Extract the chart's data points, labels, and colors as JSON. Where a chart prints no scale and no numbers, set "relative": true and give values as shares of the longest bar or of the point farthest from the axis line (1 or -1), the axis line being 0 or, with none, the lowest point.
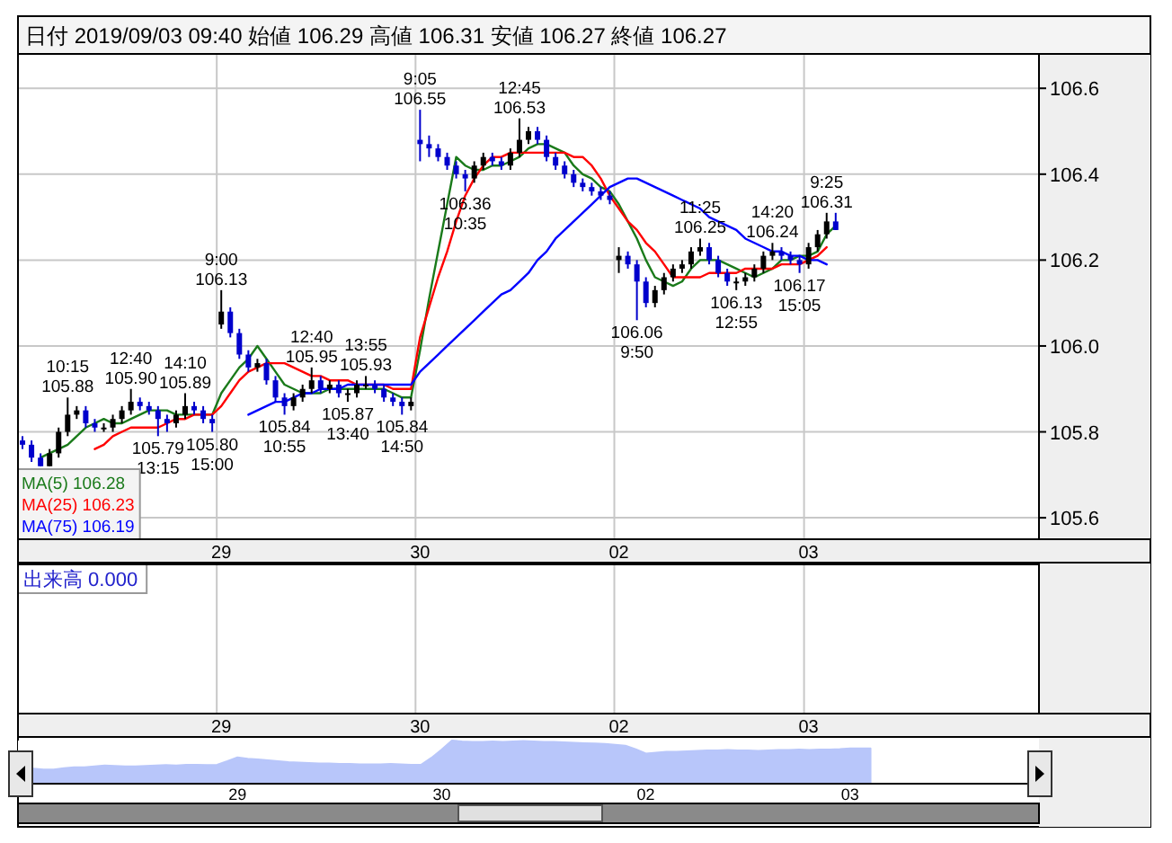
{
  "chart_data": [
    {
      "type": "candlestick",
      "title": "日付 2019/09/03 09:40   始値 106.29   高値 106.31   安値 106.27   終値 106.27",
      "categories": [
        null,
        null,
        null,
        null,
        null,
        null,
        null,
        null,
        null,
        null,
        null,
        null,
        null,
        null,
        null,
        null,
        null,
        null,
        null,
        null,
        null,
        null,
        "29",
        null,
        null,
        null,
        null,
        null,
        null,
        null,
        null,
        null,
        null,
        null,
        null,
        null,
        null,
        null,
        null,
        null,
        null,
        null,
        null,
        null,
        "30",
        null,
        null,
        null,
        null,
        null,
        null,
        null,
        null,
        null,
        null,
        null,
        null,
        null,
        null,
        null,
        null,
        null,
        null,
        null,
        null,
        null,
        "02",
        null,
        null,
        null,
        null,
        null,
        null,
        null,
        null,
        null,
        null,
        null,
        null,
        null,
        null,
        null,
        null,
        null,
        null,
        null,
        null,
        "03",
        null,
        null,
        null,
        null,
        null,
        null,
        null,
        null,
        null,
        null,
        null,
        null,
        null,
        null,
        null,
        null,
        null,
        null,
        null,
        null,
        null,
        null,
        null,
        null,
        null
      ],
      "ohlc": [
        [
          105.78,
          105.79,
          105.76,
          105.77
        ],
        [
          105.77,
          105.78,
          105.73,
          105.74
        ],
        [
          105.74,
          105.75,
          105.72,
          105.72
        ],
        [
          105.72,
          105.76,
          105.72,
          105.75
        ],
        [
          105.75,
          105.81,
          105.74,
          105.8
        ],
        [
          105.8,
          105.88,
          105.79,
          105.84
        ],
        [
          105.84,
          105.86,
          105.83,
          105.85
        ],
        [
          105.85,
          105.86,
          105.81,
          105.82
        ],
        [
          105.82,
          105.83,
          105.8,
          105.81
        ],
        [
          105.81,
          105.82,
          105.8,
          105.81
        ],
        [
          105.81,
          105.84,
          105.8,
          105.83
        ],
        [
          105.83,
          105.86,
          105.82,
          105.85
        ],
        [
          105.85,
          105.9,
          105.84,
          105.87
        ],
        [
          105.87,
          105.88,
          105.85,
          105.86
        ],
        [
          105.86,
          105.87,
          105.84,
          105.85
        ],
        [
          105.85,
          105.86,
          105.79,
          105.83
        ],
        [
          105.83,
          105.84,
          105.8,
          105.82
        ],
        [
          105.82,
          105.85,
          105.81,
          105.84
        ],
        [
          105.84,
          105.89,
          105.83,
          105.86
        ],
        [
          105.86,
          105.87,
          105.84,
          105.85
        ],
        [
          105.85,
          105.86,
          105.82,
          105.83
        ],
        [
          105.83,
          105.84,
          105.8,
          105.82
        ],
        [
          106.05,
          106.13,
          106.04,
          106.08
        ],
        [
          106.08,
          106.09,
          106.02,
          106.03
        ],
        [
          106.03,
          106.04,
          105.97,
          105.98
        ],
        [
          105.98,
          105.99,
          105.94,
          105.95
        ],
        [
          105.95,
          105.97,
          105.94,
          105.96
        ],
        [
          105.96,
          105.97,
          105.91,
          105.92
        ],
        [
          105.92,
          105.93,
          105.87,
          105.88
        ],
        [
          105.88,
          105.89,
          105.84,
          105.86
        ],
        [
          105.86,
          105.89,
          105.85,
          105.88
        ],
        [
          105.88,
          105.91,
          105.87,
          105.9
        ],
        [
          105.9,
          105.95,
          105.89,
          105.92
        ],
        [
          105.92,
          105.93,
          105.89,
          105.9
        ],
        [
          105.9,
          105.92,
          105.89,
          105.91
        ],
        [
          105.91,
          105.92,
          105.88,
          105.89
        ],
        [
          105.89,
          105.9,
          105.87,
          105.89
        ],
        [
          105.89,
          105.92,
          105.88,
          105.91
        ],
        [
          105.91,
          105.93,
          105.9,
          105.91
        ],
        [
          105.91,
          105.92,
          105.89,
          105.9
        ],
        [
          105.9,
          105.91,
          105.87,
          105.88
        ],
        [
          105.88,
          105.89,
          105.86,
          105.87
        ],
        [
          105.87,
          105.88,
          105.84,
          105.86
        ],
        [
          105.86,
          105.88,
          105.85,
          105.87
        ],
        [
          106.48,
          106.55,
          106.43,
          106.47
        ],
        [
          106.47,
          106.49,
          106.44,
          106.46
        ],
        [
          106.46,
          106.47,
          106.43,
          106.44
        ],
        [
          106.44,
          106.45,
          106.41,
          106.42
        ],
        [
          106.42,
          106.43,
          106.39,
          106.4
        ],
        [
          106.4,
          106.41,
          106.36,
          106.39
        ],
        [
          106.39,
          106.43,
          106.38,
          106.42
        ],
        [
          106.42,
          106.45,
          106.41,
          106.44
        ],
        [
          106.44,
          106.45,
          106.42,
          106.43
        ],
        [
          106.43,
          106.44,
          106.41,
          106.42
        ],
        [
          106.42,
          106.46,
          106.41,
          106.45
        ],
        [
          106.45,
          106.53,
          106.44,
          106.48
        ],
        [
          106.48,
          106.51,
          106.47,
          106.5
        ],
        [
          106.5,
          106.51,
          106.47,
          106.48
        ],
        [
          106.48,
          106.49,
          106.43,
          106.44
        ],
        [
          106.44,
          106.45,
          106.41,
          106.42
        ],
        [
          106.42,
          106.43,
          106.39,
          106.4
        ],
        [
          106.4,
          106.41,
          106.37,
          106.38
        ],
        [
          106.38,
          106.39,
          106.36,
          106.37
        ],
        [
          106.37,
          106.38,
          106.35,
          106.36
        ],
        [
          106.36,
          106.37,
          106.34,
          106.35
        ],
        [
          106.35,
          106.36,
          106.33,
          106.34
        ],
        [
          106.2,
          106.23,
          106.17,
          106.21
        ],
        [
          106.21,
          106.22,
          106.18,
          106.19
        ],
        [
          106.19,
          106.2,
          106.06,
          106.15
        ],
        [
          106.15,
          106.16,
          106.09,
          106.1
        ],
        [
          106.1,
          106.14,
          106.09,
          106.13
        ],
        [
          106.13,
          106.17,
          106.12,
          106.16
        ],
        [
          106.16,
          106.19,
          106.15,
          106.18
        ],
        [
          106.18,
          106.2,
          106.17,
          106.19
        ],
        [
          106.19,
          106.23,
          106.18,
          106.22
        ],
        [
          106.22,
          106.25,
          106.21,
          106.23
        ],
        [
          106.23,
          106.24,
          106.19,
          106.2
        ],
        [
          106.2,
          106.21,
          106.16,
          106.17
        ],
        [
          106.17,
          106.18,
          106.14,
          106.15
        ],
        [
          106.15,
          106.16,
          106.13,
          106.15
        ],
        [
          106.15,
          106.17,
          106.14,
          106.16
        ],
        [
          106.16,
          106.19,
          106.15,
          106.18
        ],
        [
          106.18,
          106.22,
          106.17,
          106.21
        ],
        [
          106.21,
          106.24,
          106.2,
          106.22
        ],
        [
          106.22,
          106.23,
          106.2,
          106.21
        ],
        [
          106.21,
          106.22,
          106.19,
          106.2
        ],
        [
          106.2,
          106.21,
          106.17,
          106.19
        ],
        [
          106.19,
          106.24,
          106.18,
          106.23
        ],
        [
          106.23,
          106.27,
          106.22,
          106.26
        ],
        [
          106.26,
          106.31,
          106.25,
          106.29
        ],
        [
          106.29,
          106.31,
          106.27,
          106.27
        ],
        null,
        null,
        null,
        null,
        null,
        null,
        null,
        null,
        null,
        null,
        null,
        null,
        null,
        null,
        null,
        null,
        null,
        null,
        null,
        null,
        null,
        null
      ],
      "colors": [
        "#0000cc",
        "#0000cc",
        "#0000cc",
        "#000000",
        "#000000",
        "#000000",
        "#000000",
        "#0000cc",
        "#0000cc",
        "#000000",
        "#000000",
        "#000000",
        "#000000",
        "#0000cc",
        "#0000cc",
        "#0000cc",
        "#0000cc",
        "#000000",
        "#000000",
        "#0000cc",
        "#0000cc",
        "#0000cc",
        "#000000",
        "#0000cc",
        "#0000cc",
        "#0000cc",
        "#000000",
        "#0000cc",
        "#0000cc",
        "#0000cc",
        "#000000",
        "#000000",
        "#000000",
        "#0000cc",
        "#000000",
        "#0000cc",
        "#000000",
        "#000000",
        "#000000",
        "#0000cc",
        "#0000cc",
        "#0000cc",
        "#0000cc",
        "#000000",
        "#0000cc",
        "#0000cc",
        "#0000cc",
        "#0000cc",
        "#0000cc",
        "#0000cc",
        "#000000",
        "#000000",
        "#0000cc",
        "#0000cc",
        "#000000",
        "#000000",
        "#000000",
        "#0000cc",
        "#0000cc",
        "#0000cc",
        "#0000cc",
        "#0000cc",
        "#0000cc",
        "#0000cc",
        "#0000cc",
        "#0000cc",
        "#000000",
        "#0000cc",
        "#0000cc",
        "#0000cc",
        "#000000",
        "#000000",
        "#000000",
        "#000000",
        "#000000",
        "#000000",
        "#0000cc",
        "#0000cc",
        "#0000cc",
        "#000000",
        "#000000",
        "#000000",
        "#000000",
        "#000000",
        "#0000cc",
        "#0000cc",
        "#0000cc",
        "#000000",
        "#000000",
        "#000000",
        "#0000cc",
        null,
        null,
        null,
        null,
        null,
        null,
        null,
        null,
        null,
        null,
        null,
        null,
        null,
        null,
        null,
        null,
        null,
        null,
        null,
        null,
        null,
        null
      ],
      "value_labels": [
        null,
        null,
        null,
        null,
        null,
        "10:15\n105.88",
        null,
        null,
        null,
        null,
        null,
        null,
        "12:40\n105.90",
        null,
        null,
        "105.79\n13:15",
        null,
        null,
        "14:10\n105.89",
        null,
        null,
        "105.80\n15:00",
        "9:00\n106.13",
        null,
        null,
        null,
        null,
        null,
        null,
        "105.84\n10:55",
        null,
        null,
        "12:40\n105.95",
        null,
        null,
        null,
        "105.87\n13:40",
        null,
        "13:55\n105.93",
        null,
        null,
        null,
        "105.84\n14:50",
        null,
        "9:05\n106.55",
        null,
        null,
        null,
        null,
        "106.36\n10:35",
        null,
        null,
        null,
        null,
        null,
        "12:45\n106.53",
        null,
        null,
        null,
        null,
        null,
        null,
        null,
        null,
        null,
        null,
        null,
        null,
        "106.06\n9:50",
        null,
        null,
        null,
        null,
        null,
        null,
        "11:25\n106.25",
        null,
        null,
        null,
        "106.13\n12:55",
        null,
        null,
        null,
        "14:20\n106.24",
        null,
        null,
        "106.17\n15:05",
        null,
        null,
        "9:25\n106.31",
        null,
        null,
        null,
        null,
        null,
        null,
        null,
        null,
        null,
        null,
        null,
        null,
        null,
        null,
        null,
        null,
        null,
        null,
        null,
        null,
        null,
        null,
        null
      ],
      "series": [
        {
          "name": "MA(5)   106.28",
          "type": "line",
          "color": "#1a7a1a",
          "values": [
            null,
            null,
            105.74,
            105.75,
            105.76,
            105.77,
            105.79,
            105.81,
            105.82,
            105.83,
            105.82,
            105.82,
            105.83,
            105.84,
            105.85,
            105.85,
            105.85,
            105.84,
            105.84,
            105.84,
            105.84,
            105.84,
            105.89,
            105.92,
            105.95,
            105.97,
            106.0,
            105.97,
            105.94,
            105.91,
            105.9,
            105.89,
            105.89,
            105.89,
            105.9,
            105.9,
            105.9,
            105.9,
            105.9,
            105.9,
            105.9,
            105.89,
            105.88,
            105.88,
            105.99,
            106.11,
            106.22,
            106.33,
            106.44,
            106.42,
            106.41,
            106.41,
            106.42,
            106.42,
            106.43,
            106.44,
            106.46,
            106.47,
            106.47,
            106.46,
            106.45,
            106.42,
            106.4,
            106.39,
            106.37,
            106.36,
            106.33,
            106.29,
            106.25,
            106.2,
            106.16,
            106.15,
            106.14,
            106.15,
            106.18,
            106.2,
            106.2,
            106.2,
            106.19,
            106.18,
            106.17,
            106.16,
            106.17,
            106.18,
            106.2,
            106.2,
            106.21,
            106.21,
            106.22,
            106.26,
            106.28,
            null,
            null,
            null,
            null,
            null,
            null,
            null,
            null,
            null,
            null,
            null,
            null,
            null,
            null,
            null,
            null,
            null,
            null,
            null,
            null,
            null,
            null
          ]
        },
        {
          "name": "MA(25)   106.23",
          "type": "line",
          "color": "#ff0000",
          "values": [
            null,
            null,
            null,
            null,
            null,
            null,
            null,
            null,
            105.76,
            105.77,
            105.79,
            105.8,
            105.81,
            105.81,
            105.81,
            105.81,
            105.82,
            105.83,
            105.83,
            105.84,
            105.84,
            105.84,
            105.86,
            105.89,
            105.92,
            105.94,
            105.95,
            105.96,
            105.96,
            105.96,
            105.95,
            105.94,
            105.93,
            105.93,
            105.92,
            105.92,
            105.92,
            105.91,
            105.91,
            105.91,
            105.91,
            105.9,
            105.9,
            105.9,
            106.02,
            106.09,
            106.16,
            106.22,
            106.29,
            106.35,
            106.39,
            106.42,
            106.44,
            106.44,
            106.45,
            106.45,
            106.45,
            106.45,
            106.45,
            106.45,
            106.45,
            106.44,
            106.44,
            106.42,
            106.39,
            106.35,
            106.32,
            106.29,
            106.27,
            106.24,
            106.22,
            106.19,
            106.16,
            106.16,
            106.16,
            106.16,
            106.17,
            106.17,
            106.17,
            106.17,
            106.18,
            106.18,
            106.18,
            106.18,
            106.19,
            106.19,
            106.19,
            106.2,
            106.21,
            106.23,
            null,
            null,
            null,
            null,
            null,
            null,
            null,
            null,
            null,
            null,
            null,
            null,
            null,
            null,
            null,
            null,
            null,
            null,
            null,
            null,
            null,
            null,
            null
          ]
        },
        {
          "name": "MA(75)   106.19",
          "type": "line",
          "color": "#0000ff",
          "values": [
            null,
            null,
            null,
            null,
            null,
            null,
            null,
            null,
            null,
            null,
            null,
            null,
            null,
            null,
            null,
            null,
            null,
            null,
            null,
            null,
            null,
            null,
            null,
            null,
            null,
            105.84,
            105.85,
            105.86,
            105.87,
            105.87,
            105.88,
            105.89,
            105.89,
            105.9,
            105.9,
            105.9,
            105.91,
            105.91,
            105.91,
            105.91,
            105.91,
            105.91,
            105.91,
            105.91,
            105.94,
            105.96,
            105.98,
            106.0,
            106.02,
            106.04,
            106.06,
            106.08,
            106.1,
            106.12,
            106.13,
            106.15,
            106.17,
            106.2,
            106.22,
            106.25,
            106.27,
            106.29,
            106.31,
            106.33,
            106.35,
            106.37,
            106.38,
            106.39,
            106.39,
            106.38,
            106.37,
            106.36,
            106.35,
            106.34,
            106.33,
            106.32,
            106.3,
            106.29,
            106.28,
            106.27,
            106.25,
            106.24,
            106.23,
            106.22,
            106.22,
            106.21,
            106.21,
            106.2,
            106.2,
            106.19,
            null,
            null,
            null,
            null,
            null,
            null,
            null,
            null,
            null,
            null,
            null,
            null,
            null,
            null,
            null,
            null,
            null,
            null,
            null,
            null,
            null,
            null,
            null
          ]
        }
      ],
      "ylim": [
        105.55,
        106.68
      ],
      "yticks": [
        {
          "value": 105.6,
          "label": "105.6"
        },
        {
          "value": 105.8,
          "label": "105.8"
        },
        {
          "value": 106,
          "label": "106.0"
        },
        {
          "value": 106.2,
          "label": "106.2"
        },
        {
          "value": 106.4,
          "label": "106.4"
        },
        {
          "value": 106.6,
          "label": "106.6"
        }
      ],
      "grid": true,
      "legend": "bottom left"
    },
    {
      "type": "other",
      "annotations": [
        "出来高 0.000"
      ],
      "categories": [
        null,
        null,
        null,
        null,
        null,
        null,
        null,
        null,
        null,
        null,
        null,
        null,
        null,
        null,
        null,
        null,
        null,
        null,
        null,
        null,
        null,
        null,
        "29",
        null,
        null,
        null,
        null,
        null,
        null,
        null,
        null,
        null,
        null,
        null,
        null,
        null,
        null,
        null,
        null,
        null,
        null,
        null,
        null,
        null,
        "30",
        null,
        null,
        null,
        null,
        null,
        null,
        null,
        null,
        null,
        null,
        null,
        null,
        null,
        null,
        null,
        null,
        null,
        null,
        null,
        null,
        null,
        "02",
        null,
        null,
        null,
        null,
        null,
        null,
        null,
        null,
        null,
        null,
        null,
        null,
        null,
        null,
        null,
        null,
        null,
        null,
        null,
        null,
        "03",
        null,
        null,
        null,
        null,
        null,
        null,
        null,
        null,
        null,
        null,
        null,
        null,
        null,
        null,
        null,
        null,
        null,
        null,
        null,
        null,
        null,
        null,
        null,
        null,
        null
      ]
    },
    {
      "type": "area",
      "relative": true,
      "categories": [
        null,
        null,
        null,
        null,
        null,
        null,
        null,
        null,
        null,
        null,
        null,
        null,
        null,
        null,
        null,
        null,
        null,
        null,
        null,
        null,
        null,
        "29",
        null,
        null,
        null,
        null,
        null,
        null,
        null,
        null,
        null,
        null,
        null,
        null,
        null,
        null,
        null,
        null,
        null,
        null,
        null,
        "30",
        null,
        null,
        null,
        null,
        null,
        null,
        null,
        null,
        null,
        null,
        null,
        null,
        null,
        null,
        null,
        null,
        null,
        null,
        null,
        "02",
        null,
        null,
        null,
        null,
        null,
        null,
        null,
        null,
        null,
        null,
        null,
        null,
        null,
        null,
        null,
        null,
        null,
        null,
        null,
        "03",
        null,
        null,
        null,
        null,
        null,
        null,
        null,
        null,
        null,
        null,
        null,
        null,
        null,
        null,
        null,
        null,
        null,
        null
      ],
      "series": [
        {
          "color": "#b8c6fa",
          "values": [
            null,
            0.35,
            0.33,
            0.33,
            0.36,
            0.38,
            0.38,
            0.4,
            0.42,
            0.41,
            0.4,
            0.4,
            0.41,
            0.42,
            0.43,
            0.42,
            0.44,
            0.44,
            0.43,
            0.44,
            0.52,
            0.61,
            0.58,
            0.56,
            0.54,
            0.52,
            0.5,
            0.49,
            0.48,
            0.47,
            0.47,
            0.46,
            0.46,
            0.45,
            0.45,
            0.45,
            0.46,
            0.45,
            0.44,
            0.44,
            0.6,
            0.79,
            1.0,
            0.98,
            0.97,
            0.97,
            0.98,
            0.97,
            0.98,
            0.99,
            0.98,
            0.97,
            0.97,
            0.96,
            0.95,
            0.94,
            0.93,
            0.92,
            0.9,
            0.88,
            0.8,
            0.7,
            0.72,
            0.74,
            0.74,
            0.75,
            0.76,
            0.77,
            0.77,
            0.78,
            0.77,
            0.77,
            0.76,
            0.77,
            0.78,
            0.78,
            0.79,
            0.78,
            0.79,
            0.79,
            0.8,
            0.82,
            0.82,
            0.82,
            null,
            null,
            null,
            null,
            null,
            null,
            null,
            null,
            null,
            null,
            null,
            null,
            null,
            null,
            null,
            null
          ]
        }
      ]
    }
  ]
}
